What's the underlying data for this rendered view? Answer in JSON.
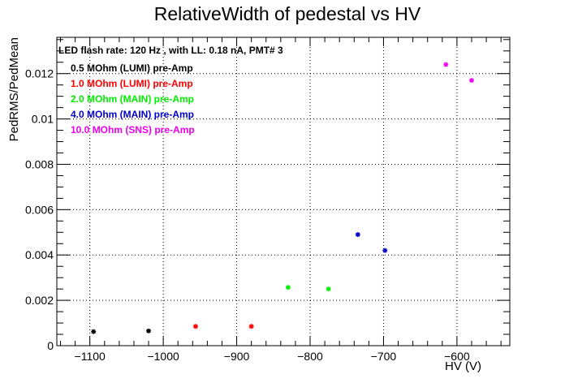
{
  "chart_data": {
    "type": "scatter",
    "title": "RelativeWidth of pedestal vs HV",
    "xlabel": "HV (V)",
    "ylabel": "PedRMS/PedMean",
    "xlim": [
      -1145,
      -528
    ],
    "ylim": [
      0,
      0.0136
    ],
    "xticks": [
      -1100,
      -1000,
      -900,
      -800,
      -700,
      -600
    ],
    "xtick_labels": [
      "−1100",
      "−1000",
      "−900",
      "−800",
      "−700",
      "−600"
    ],
    "yticks": [
      0,
      0.002,
      0.004,
      0.006,
      0.008,
      0.01,
      0.012
    ],
    "ytick_labels": [
      "0",
      "0.002",
      "0.004",
      "0.006",
      "0.008",
      "0.01",
      "0.012"
    ],
    "grid": true,
    "legend_header": "LED flash rate: 120 Hz , with LL: 0.18 nA, PMT# 3",
    "legend_position": "top-left",
    "series": [
      {
        "name": "0.5 MOhm (LUMI) pre-Amp",
        "color": "#000000",
        "x": [
          -1095,
          -1020
        ],
        "y": [
          0.00062,
          0.00065
        ]
      },
      {
        "name": "1.0 MOhm (LUMI) pre-Amp",
        "color": "#ff0000",
        "x": [
          -956,
          -880
        ],
        "y": [
          0.00085,
          0.00085
        ]
      },
      {
        "name": "2.0 MOhm (MAIN) pre-Amp",
        "color": "#00ee00",
        "x": [
          -830,
          -775
        ],
        "y": [
          0.00257,
          0.0025
        ]
      },
      {
        "name": "4.0 MOhm (MAIN) pre-Amp",
        "color": "#0000cc",
        "x": [
          -735,
          -698
        ],
        "y": [
          0.0049,
          0.0042
        ]
      },
      {
        "name": "10.0 MOhm (SNS) pre-Amp",
        "color": "#ee00ee",
        "x": [
          -615,
          -580
        ],
        "y": [
          0.0124,
          0.0117
        ]
      }
    ]
  }
}
